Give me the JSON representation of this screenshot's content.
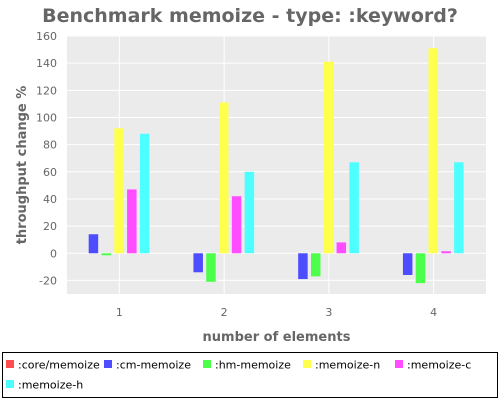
{
  "chart_data": {
    "type": "bar",
    "title": "Benchmark memoize - type: :keyword?",
    "xlabel": "number of elements",
    "ylabel": "throughput change %",
    "categories": [
      "1",
      "2",
      "3",
      "4"
    ],
    "ylim": [
      -30,
      160
    ],
    "yticks": [
      -20,
      0,
      20,
      40,
      60,
      80,
      100,
      120,
      140,
      160
    ],
    "grid": true,
    "legend_position": "bottom",
    "series": [
      {
        "name": ":core/memoize",
        "color": "#ff4d4d",
        "values": [
          0,
          0,
          0,
          0
        ]
      },
      {
        "name": ":cm-memoize",
        "color": "#4d4dff",
        "values": [
          14,
          -14,
          -19,
          -16
        ]
      },
      {
        "name": ":hm-memoize",
        "color": "#4dff4d",
        "values": [
          -1.5,
          -21,
          -17,
          -22
        ]
      },
      {
        "name": ":memoize-n",
        "color": "#ffff4d",
        "values": [
          92,
          111,
          141,
          151
        ]
      },
      {
        "name": ":memoize-c",
        "color": "#ff4dff",
        "values": [
          47,
          42,
          8,
          1.5
        ]
      },
      {
        "name": ":memoize-h",
        "color": "#4dffff",
        "values": [
          88,
          60,
          67,
          67
        ]
      }
    ]
  }
}
